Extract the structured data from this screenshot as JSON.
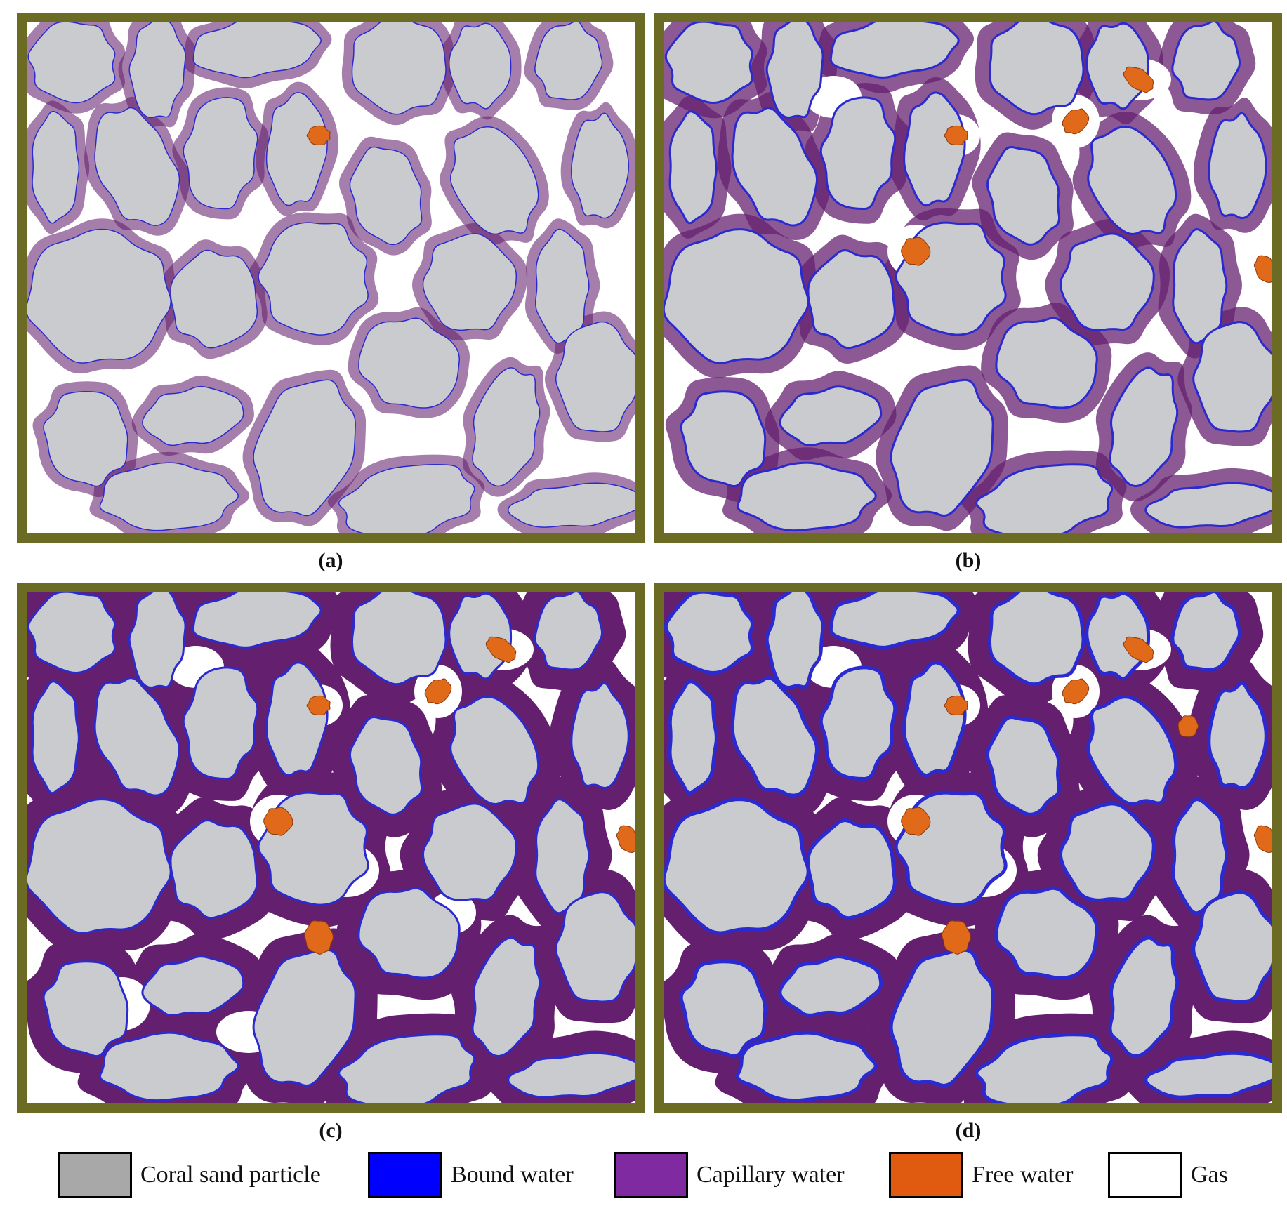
{
  "panels": [
    {
      "id": "a",
      "caption": "(a)",
      "bound": 1.5,
      "capillary": 0.35,
      "free": 1,
      "holes": 0
    },
    {
      "id": "b",
      "caption": "(b)",
      "bound": 3,
      "capillary": 0.6,
      "free": 5,
      "holes": 5
    },
    {
      "id": "c",
      "caption": "(c)",
      "bound": 3,
      "capillary": 1.0,
      "free": 6,
      "holes": 9
    },
    {
      "id": "d",
      "caption": "(d)",
      "bound": 5,
      "capillary": 1.0,
      "free": 7,
      "holes": 6
    }
  ],
  "legend": [
    {
      "label": "Coral sand particle",
      "color": "#a8a8a8"
    },
    {
      "label": "Bound water",
      "color": "#0000ff"
    },
    {
      "label": "Capillary water",
      "color": "#7f2aa0"
    },
    {
      "label": "Free water",
      "color": "#e05a10"
    },
    {
      "label": "Gas",
      "color": "#ffffff"
    }
  ],
  "colors": {
    "frame": "#6b6b23",
    "particle_fill": "#c9cbce",
    "bound_stroke": "#2a2ad0",
    "capillary": "#641f6e",
    "free_water": "#e06a1a",
    "gas": "#ffffff"
  }
}
